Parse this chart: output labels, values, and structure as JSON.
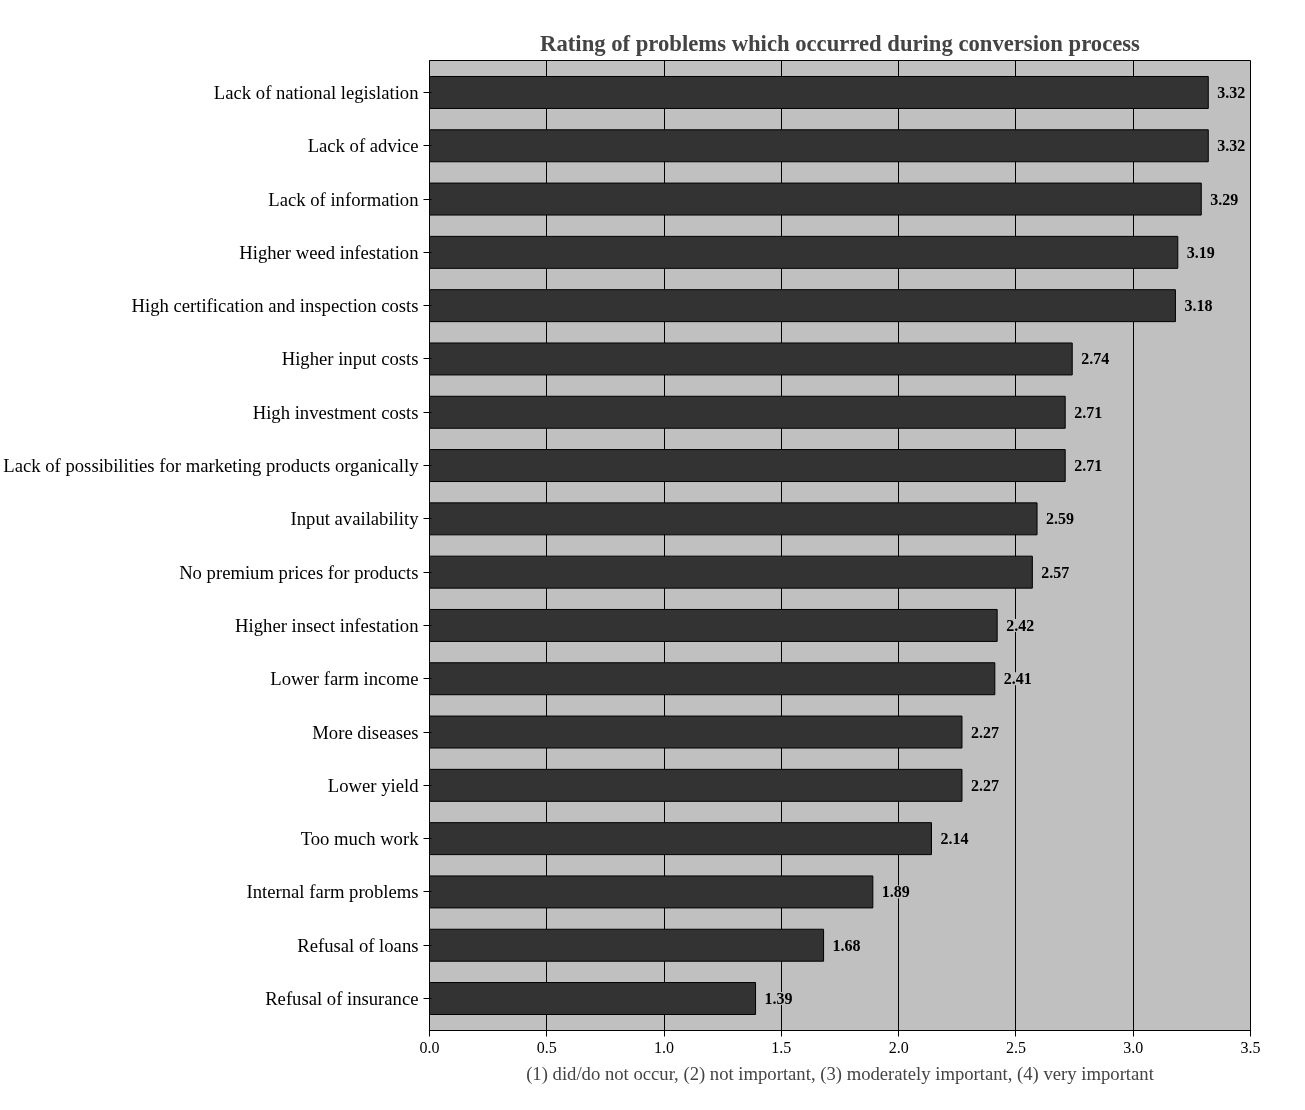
{
  "chart_data": {
    "type": "bar",
    "orientation": "horizontal",
    "title": "Rating of problems which occurred during conversion process",
    "categories": [
      "Lack of national legislation",
      "Lack of advice",
      "Lack of information",
      "Higher weed infestation",
      "High certification and inspection costs",
      "Higher input costs",
      "High investment costs",
      "Lack of possibilities for marketing products organically",
      "Input availability",
      "No premium prices for products",
      "Higher insect infestation",
      "Lower farm income",
      "More diseases",
      "Lower yield",
      "Too much work",
      "Internal farm problems",
      "Refusal of loans",
      "Refusal of insurance"
    ],
    "values": [
      3.32,
      3.32,
      3.29,
      3.19,
      3.18,
      2.74,
      2.71,
      2.71,
      2.59,
      2.57,
      2.42,
      2.41,
      2.27,
      2.27,
      2.14,
      1.89,
      1.68,
      1.39
    ],
    "color": "#333333",
    "xlim": [
      0,
      3.5
    ],
    "xticks": [
      {
        "value": 0,
        "label": "0.0"
      },
      {
        "value": 0.5,
        "label": "0.5"
      },
      {
        "value": 1,
        "label": "1.0"
      },
      {
        "value": 1.5,
        "label": "1.5"
      },
      {
        "value": 2,
        "label": "2.0"
      },
      {
        "value": 2.5,
        "label": "2.5"
      },
      {
        "value": 3,
        "label": "3.0"
      },
      {
        "value": 3.5,
        "label": "3.5"
      }
    ],
    "grid": "x",
    "data_labels": true,
    "annotations": [
      "(1) did/do not occur, (2) not important, (3) moderately important, (4) very important"
    ]
  }
}
